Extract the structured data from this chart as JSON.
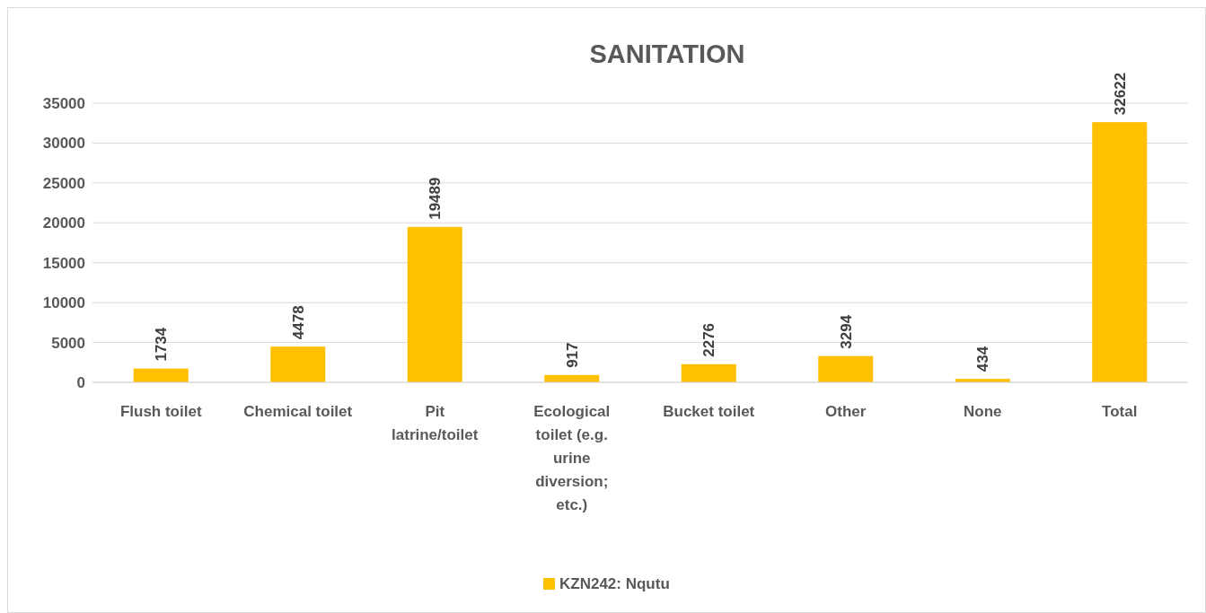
{
  "chart_data": {
    "type": "bar",
    "title": "SANITATION",
    "categories": [
      "Flush toilet",
      "Chemical toilet",
      "Pit latrine/toilet",
      "Ecological toilet (e.g. urine diversion; etc.)",
      "Bucket toilet",
      "Other",
      "None",
      "Total"
    ],
    "series": [
      {
        "name": "KZN242: Nqutu",
        "color": "#ffc000",
        "values": [
          1734,
          4478,
          19489,
          917,
          2276,
          3294,
          434,
          32622
        ]
      }
    ],
    "ylim": [
      0,
      35000
    ],
    "yticks": [
      0,
      5000,
      10000,
      15000,
      20000,
      25000,
      30000,
      35000
    ],
    "grid": "y",
    "legend": "bottom",
    "data_labels": true
  }
}
